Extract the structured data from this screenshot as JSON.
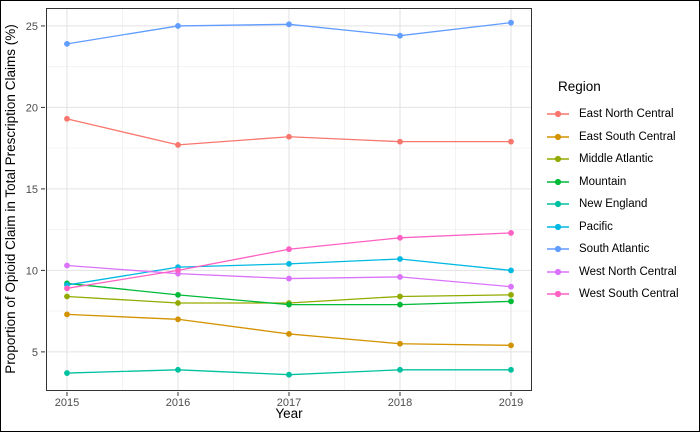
{
  "figure": {
    "legend_title": "Region"
  },
  "chart_data": {
    "type": "line",
    "x": [
      2015,
      2016,
      2017,
      2018,
      2019
    ],
    "xlabel": "Year",
    "ylabel": "Proportion of Opioid Claim in Total Prescription Claims (%)",
    "ylim": [
      2.6,
      26.1
    ],
    "yticks": [
      5,
      10,
      15,
      20,
      25
    ],
    "y_minor_ticks": [
      7.5,
      12.5,
      17.5,
      22.5
    ],
    "grid": true,
    "legend_title": "Region",
    "legend_position": "right",
    "series": [
      {
        "name": "East North Central",
        "color": "#F8766D",
        "values": [
          19.3,
          17.7,
          18.2,
          17.9,
          17.9
        ]
      },
      {
        "name": "East South Central",
        "color": "#D39200",
        "values": [
          7.3,
          7.0,
          6.1,
          5.5,
          5.4
        ]
      },
      {
        "name": "Middle Atlantic",
        "color": "#93AA00",
        "values": [
          8.4,
          8.0,
          8.0,
          8.4,
          8.5
        ]
      },
      {
        "name": "Mountain",
        "color": "#00BA38",
        "values": [
          9.2,
          8.5,
          7.9,
          7.9,
          8.1
        ]
      },
      {
        "name": "New England",
        "color": "#00C19F",
        "values": [
          3.7,
          3.9,
          3.6,
          3.9,
          3.9
        ]
      },
      {
        "name": "Pacific",
        "color": "#00B9E3",
        "values": [
          9.1,
          10.2,
          10.4,
          10.7,
          10.0
        ]
      },
      {
        "name": "South Atlantic",
        "color": "#619CFF",
        "values": [
          23.9,
          25.0,
          25.1,
          24.4,
          25.2
        ]
      },
      {
        "name": "West North Central",
        "color": "#DB72FB",
        "values": [
          10.3,
          9.8,
          9.5,
          9.6,
          9.0
        ]
      },
      {
        "name": "West South Central",
        "color": "#FF61C3",
        "values": [
          8.9,
          10.0,
          11.3,
          12.0,
          12.3
        ]
      }
    ]
  },
  "colors": {
    "panel_background": "#FFFFFF",
    "panel_border": "#333333",
    "grid_major": "#E2E2E2",
    "grid_minor": "#F0F0F0",
    "tick_mark": "#333333",
    "tick_text": "#4D4D4D",
    "title_text": "#000000"
  }
}
